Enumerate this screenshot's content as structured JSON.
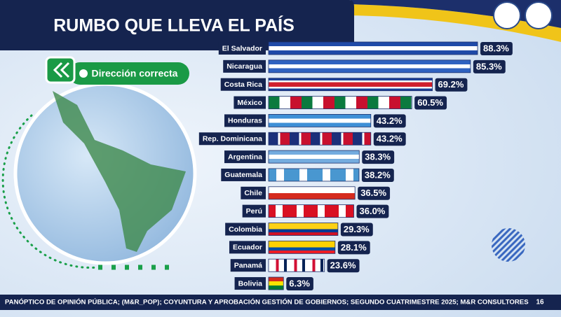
{
  "chart_data": {
    "type": "bar",
    "orientation": "horizontal",
    "title": "RUMBO QUE LLEVA EL PAÍS",
    "legend_label": "Dirección correcta",
    "categories": [
      "El Salvador",
      "Nicaragua",
      "Costa Rica",
      "México",
      "Honduras",
      "Rep. Dominicana",
      "Argentina",
      "Guatemala",
      "Chile",
      "Perú",
      "Colombia",
      "Ecuador",
      "Panamá",
      "Bolivia"
    ],
    "values": [
      88.3,
      85.3,
      69.2,
      60.5,
      43.2,
      43.2,
      38.3,
      38.2,
      36.5,
      36.0,
      29.3,
      28.1,
      23.6,
      6.3
    ],
    "value_labels": [
      "88.3%",
      "85.3%",
      "69.2%",
      "60.5%",
      "43.2%",
      "43.2%",
      "38.3%",
      "38.2%",
      "36.5%",
      "36.0%",
      "29.3%",
      "28.1%",
      "23.6%",
      "6.3%"
    ],
    "xlim": [
      0,
      100
    ],
    "footer": "PANÓPTICO DE OPINIÓN PÚBLICA; (M&R_POP); COYUNTURA Y APROBACIÓN GESTIÓN DE GOBIERNOS; SEGUNDO CUATRIMESTRE 2025; M&R CONSULTORES",
    "page_number": "16"
  }
}
